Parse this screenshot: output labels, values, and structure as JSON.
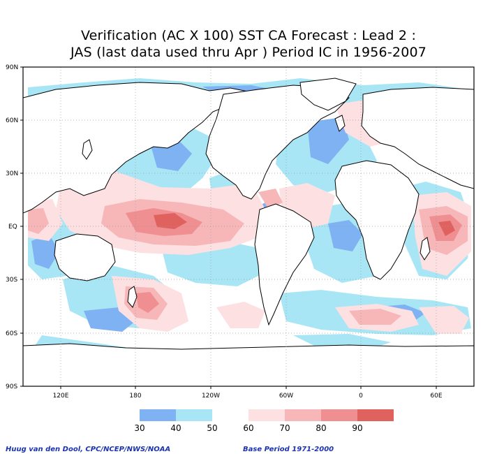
{
  "title": {
    "line1": "Verification (AC X 100) SST CA Forecast : Lead 2 :",
    "line2": "JAS (last data used thru Apr ) Period IC in 1956-2007"
  },
  "axes": {
    "lat_labels": [
      "90N",
      "60N",
      "30N",
      "EQ",
      "30S",
      "60S",
      "90S"
    ],
    "lon_labels": [
      "120E",
      "180",
      "120W",
      "60W",
      "0",
      "60E"
    ]
  },
  "legend": {
    "labels": [
      "30",
      "40",
      "50",
      "60",
      "70",
      "80",
      "90"
    ],
    "colors": [
      "#7fb2f2",
      "#a9e6f5",
      "#ffffff",
      "#fde0e2",
      "#f7b6b8",
      "#f08f91",
      "#e0625f"
    ]
  },
  "credits": {
    "left": "Huug van den Dool, CPC/NCEP/NWS/NOAA",
    "right": "Base Period 1971-2000"
  }
}
